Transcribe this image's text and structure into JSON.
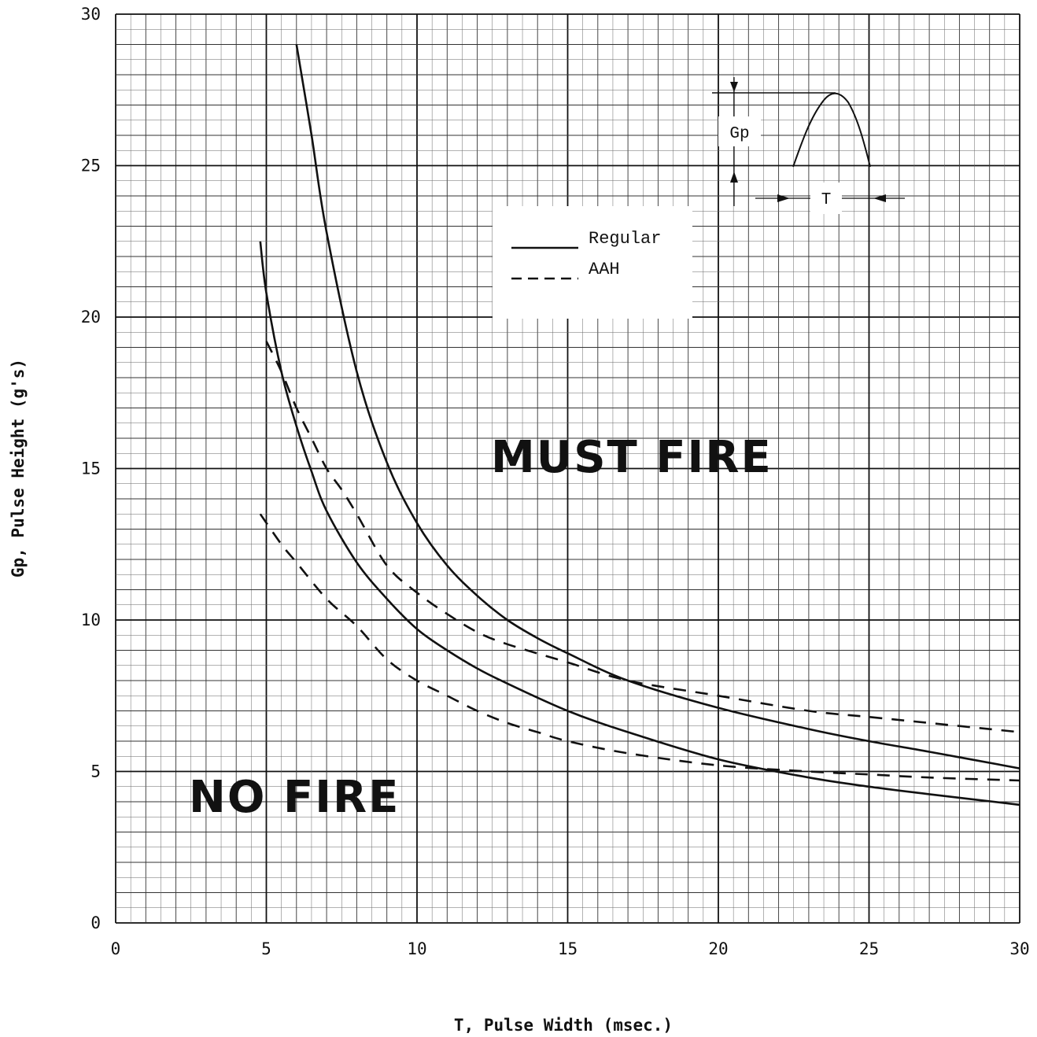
{
  "chart_data": {
    "type": "line",
    "xlabel": "T, Pulse Width (msec.)",
    "ylabel": "Gp, Pulse Height (g's)",
    "xlim": [
      0,
      30
    ],
    "ylim": [
      0,
      30
    ],
    "x_ticks": [
      "0",
      "5",
      "10",
      "15",
      "20",
      "25",
      "30"
    ],
    "y_ticks": [
      "0",
      "5",
      "10",
      "15",
      "20",
      "25",
      "30"
    ],
    "grid": true,
    "legend": {
      "placement": "top-center",
      "entries": [
        {
          "label": "Regular",
          "style": "solid"
        },
        {
          "label": "AAH",
          "style": "dashed"
        }
      ]
    },
    "annotations": {
      "must_fire": "MUST FIRE",
      "no_fire": "NO FIRE",
      "inset_gp": "Gp",
      "inset_t": "T"
    },
    "series": [
      {
        "style": "solid",
        "group": "Regular",
        "x": [
          6.0,
          6.5,
          7.0,
          8.0,
          9.0,
          10.0,
          11.0,
          12.0,
          13.0,
          14.0,
          15.0,
          17.0,
          20.0,
          23.0,
          25.0,
          27.0,
          30.0
        ],
        "y": [
          29.0,
          26.0,
          22.8,
          18.2,
          15.2,
          13.2,
          11.8,
          10.8,
          10.0,
          9.4,
          8.9,
          8.0,
          7.1,
          6.4,
          6.0,
          5.65,
          5.1
        ]
      },
      {
        "style": "solid",
        "group": "Regular",
        "x": [
          4.8,
          5.0,
          5.5,
          6.0,
          6.5,
          7.0,
          8.0,
          9.0,
          10.0,
          11.0,
          12.0,
          13.0,
          15.0,
          17.0,
          20.0,
          23.0,
          25.0,
          27.0,
          30.0
        ],
        "y": [
          22.5,
          20.8,
          18.2,
          16.4,
          14.9,
          13.6,
          11.9,
          10.7,
          9.7,
          9.0,
          8.4,
          7.9,
          7.0,
          6.3,
          5.4,
          4.8,
          4.5,
          4.25,
          3.9
        ]
      },
      {
        "style": "dashed",
        "group": "AAH",
        "x": [
          5.0,
          5.5,
          6.0,
          6.5,
          7.0,
          7.5,
          8.0,
          9.0,
          10.0,
          11.0,
          12.0,
          13.0,
          15.0,
          17.0,
          20.0,
          23.0,
          25.0,
          27.0,
          30.0
        ],
        "y": [
          19.2,
          18.2,
          17.0,
          16.0,
          15.0,
          14.3,
          13.5,
          11.8,
          10.9,
          10.2,
          9.6,
          9.2,
          8.6,
          8.0,
          7.5,
          7.0,
          6.8,
          6.6,
          6.3
        ]
      },
      {
        "style": "dashed",
        "group": "AAH",
        "x": [
          4.8,
          5.5,
          6.0,
          7.0,
          8.0,
          9.0,
          10.0,
          11.0,
          12.0,
          13.0,
          14.0,
          15.0,
          17.0,
          20.0,
          23.0,
          25.0,
          27.0,
          30.0
        ],
        "y": [
          13.5,
          12.5,
          11.9,
          10.7,
          9.8,
          8.7,
          8.0,
          7.5,
          7.0,
          6.6,
          6.3,
          6.0,
          5.6,
          5.2,
          5.0,
          4.9,
          4.8,
          4.7
        ]
      }
    ]
  }
}
